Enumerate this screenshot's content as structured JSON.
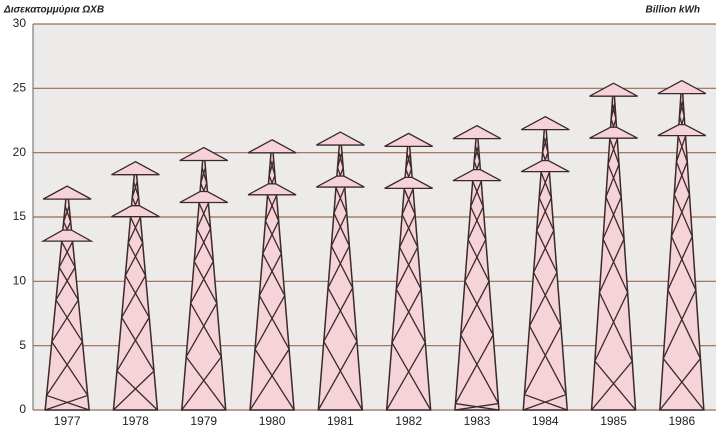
{
  "chart_data": {
    "type": "pylon",
    "title": "Δισεκατομμύρια ΩΧΒ",
    "unit_label": "Billion  kWh",
    "categories": [
      "1977",
      "1978",
      "1979",
      "1980",
      "1981",
      "1982",
      "1983",
      "1984",
      "1985",
      "1986"
    ],
    "values": [
      17.4,
      19.3,
      20.4,
      21.0,
      21.6,
      21.5,
      22.1,
      22.8,
      25.4,
      25.6
    ],
    "color": "#f6d3d8",
    "ylim": [
      0,
      30
    ],
    "yticks": [
      0,
      5,
      10,
      15,
      20,
      25,
      30
    ],
    "grid": true
  }
}
